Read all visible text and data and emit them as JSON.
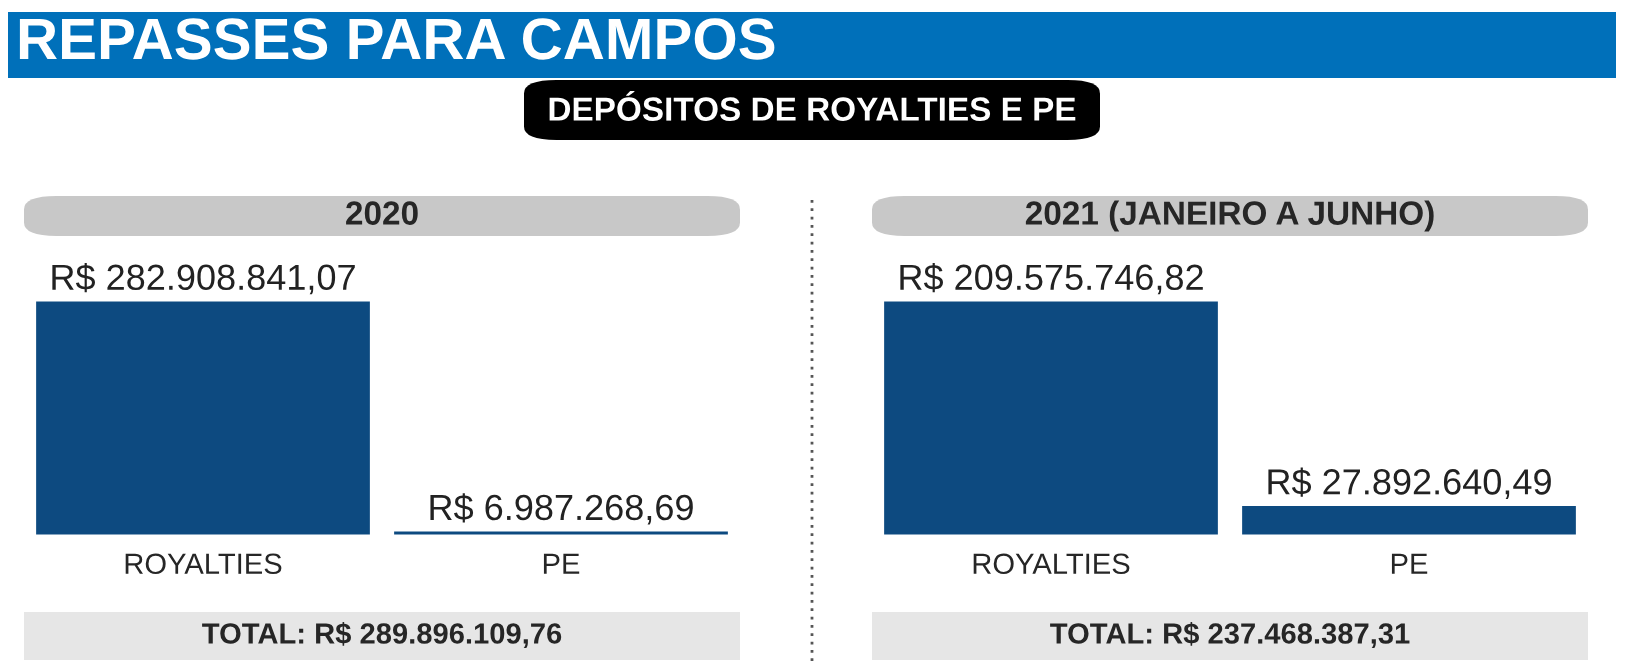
{
  "chart_data": [
    {
      "type": "other",
      "title": "REPASSES PARA CAMPOS",
      "subtitle": "DEPÓSITOS DE ROYALTIES E PE"
    },
    {
      "type": "bar",
      "title": "2020",
      "categories": [
        "ROYALTIES",
        "PE"
      ],
      "values": [
        282908841.07,
        6987268.69
      ],
      "color": "#0d4a80",
      "value_labels": [
        "R$ 282.908.841,07",
        "R$ 6.987.268,69"
      ],
      "annotations": [
        "TOTAL: R$ 289.896.109,76"
      ]
    },
    {
      "type": "bar",
      "title": "2021 (JANEIRO A JUNHO)",
      "categories": [
        "ROYALTIES",
        "PE"
      ],
      "values": [
        209575746.82,
        27892640.49
      ],
      "color": "#0d4a80",
      "value_labels": [
        "R$ 209.575.746,82",
        "R$ 27.892.640,49"
      ],
      "annotations": [
        "TOTAL: R$ 237.468.387,31"
      ]
    }
  ]
}
